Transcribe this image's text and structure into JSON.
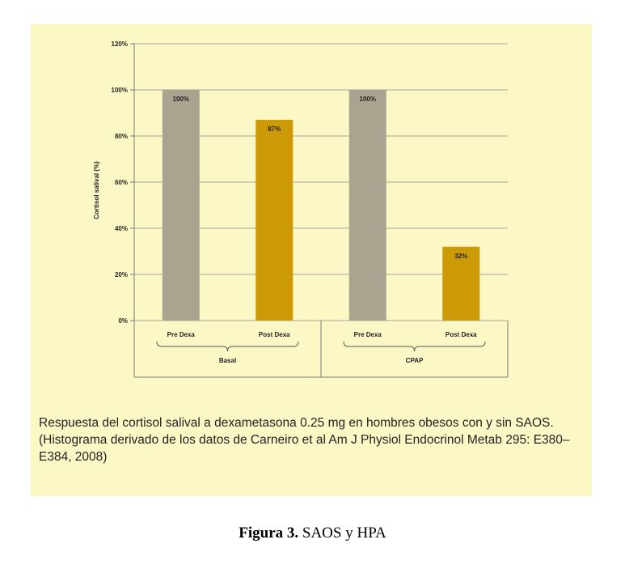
{
  "chart_data": {
    "type": "bar",
    "ylabel": "Cortisol salival (%)",
    "ylim": [
      0,
      120
    ],
    "yticks": [
      0,
      20,
      40,
      60,
      80,
      100,
      120
    ],
    "ytick_labels": [
      "0%",
      "20%",
      "40%",
      "60%",
      "80%",
      "100%",
      "120%"
    ],
    "grid": true,
    "groups": [
      {
        "label": "Basal",
        "bars": [
          {
            "category": "Pre Dexa",
            "value": 100,
            "label": "100%",
            "color": "#a9a48f"
          },
          {
            "category": "Post Dexa",
            "value": 87,
            "label": "87%",
            "color": "#cc9a06"
          }
        ]
      },
      {
        "label": "CPAP",
        "bars": [
          {
            "category": "Pre Dexa",
            "value": 100,
            "label": "100%",
            "color": "#a9a48f"
          },
          {
            "category": "Post Dexa",
            "value": 32,
            "label": "32%",
            "color": "#cc9a06"
          }
        ]
      }
    ]
  },
  "caption": "Respuesta del cortisol salival a dexametasona 0.25 mg en hombres obesos con y sin SAOS. (Histograma derivado de los datos de Carneiro et al Am J Physiol Endocrinol Metab 295: E380–E384, 2008)",
  "figure": {
    "number": "Figura 3.",
    "title": "SAOS y HPA"
  }
}
